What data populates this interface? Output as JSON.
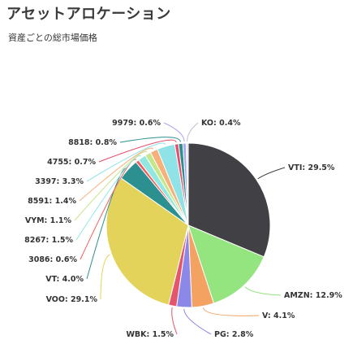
{
  "page": {
    "title": "アセットアロケーション",
    "subtitle": "資産ごとの総市場価格"
  },
  "chart_data": {
    "type": "pie",
    "start": "top, clockwise",
    "slices": [
      {
        "name": "VTI",
        "value": 29.5,
        "label": "VTI: 29.5%",
        "color": "#404045"
      },
      {
        "name": "AMZN",
        "value": 12.9,
        "label": "AMZN: 12.9%",
        "color": "#94e580"
      },
      {
        "name": "V",
        "value": 4.1,
        "label": "V: 4.1%",
        "color": "#f4a261"
      },
      {
        "name": "PG",
        "value": 2.8,
        "label": "PG: 2.8%",
        "color": "#8b88e8"
      },
      {
        "name": "WBK",
        "value": 1.5,
        "label": "WBK: 1.5%",
        "color": "#e5566d"
      },
      {
        "name": "VOO",
        "value": 29.1,
        "label": "VOO: 29.1%",
        "color": "#e4d35a"
      },
      {
        "name": "VT",
        "value": 4.0,
        "label": "VT: 4.0%",
        "color": "#2b908f"
      },
      {
        "name": "3086",
        "value": 0.6,
        "label": "3086: 0.6%",
        "color": "#f45b5b"
      },
      {
        "name": "8267",
        "value": 1.5,
        "label": "8267: 1.5%",
        "color": "#91e8e1"
      },
      {
        "name": "VYM",
        "value": 1.1,
        "label": "VYM: 1.1%",
        "color": "#c6e68a"
      },
      {
        "name": "8591",
        "value": 1.4,
        "label": "8591: 1.4%",
        "color": "#f7b07a"
      },
      {
        "name": "3397",
        "value": 3.3,
        "label": "3397: 3.3%",
        "color": "#8fe3e6"
      },
      {
        "name": "4755",
        "value": 0.7,
        "label": "4755: 0.7%",
        "color": "#e74c6a"
      },
      {
        "name": "8818",
        "value": 0.8,
        "label": "8818: 0.8%",
        "color": "#2b908f"
      },
      {
        "name": "9979",
        "value": 0.6,
        "label": "9979: 0.6%",
        "color": "#a9a6f0"
      },
      {
        "name": "KO",
        "value": 0.4,
        "label": "KO: 0.4%",
        "color": "#e1e6f0"
      }
    ]
  }
}
